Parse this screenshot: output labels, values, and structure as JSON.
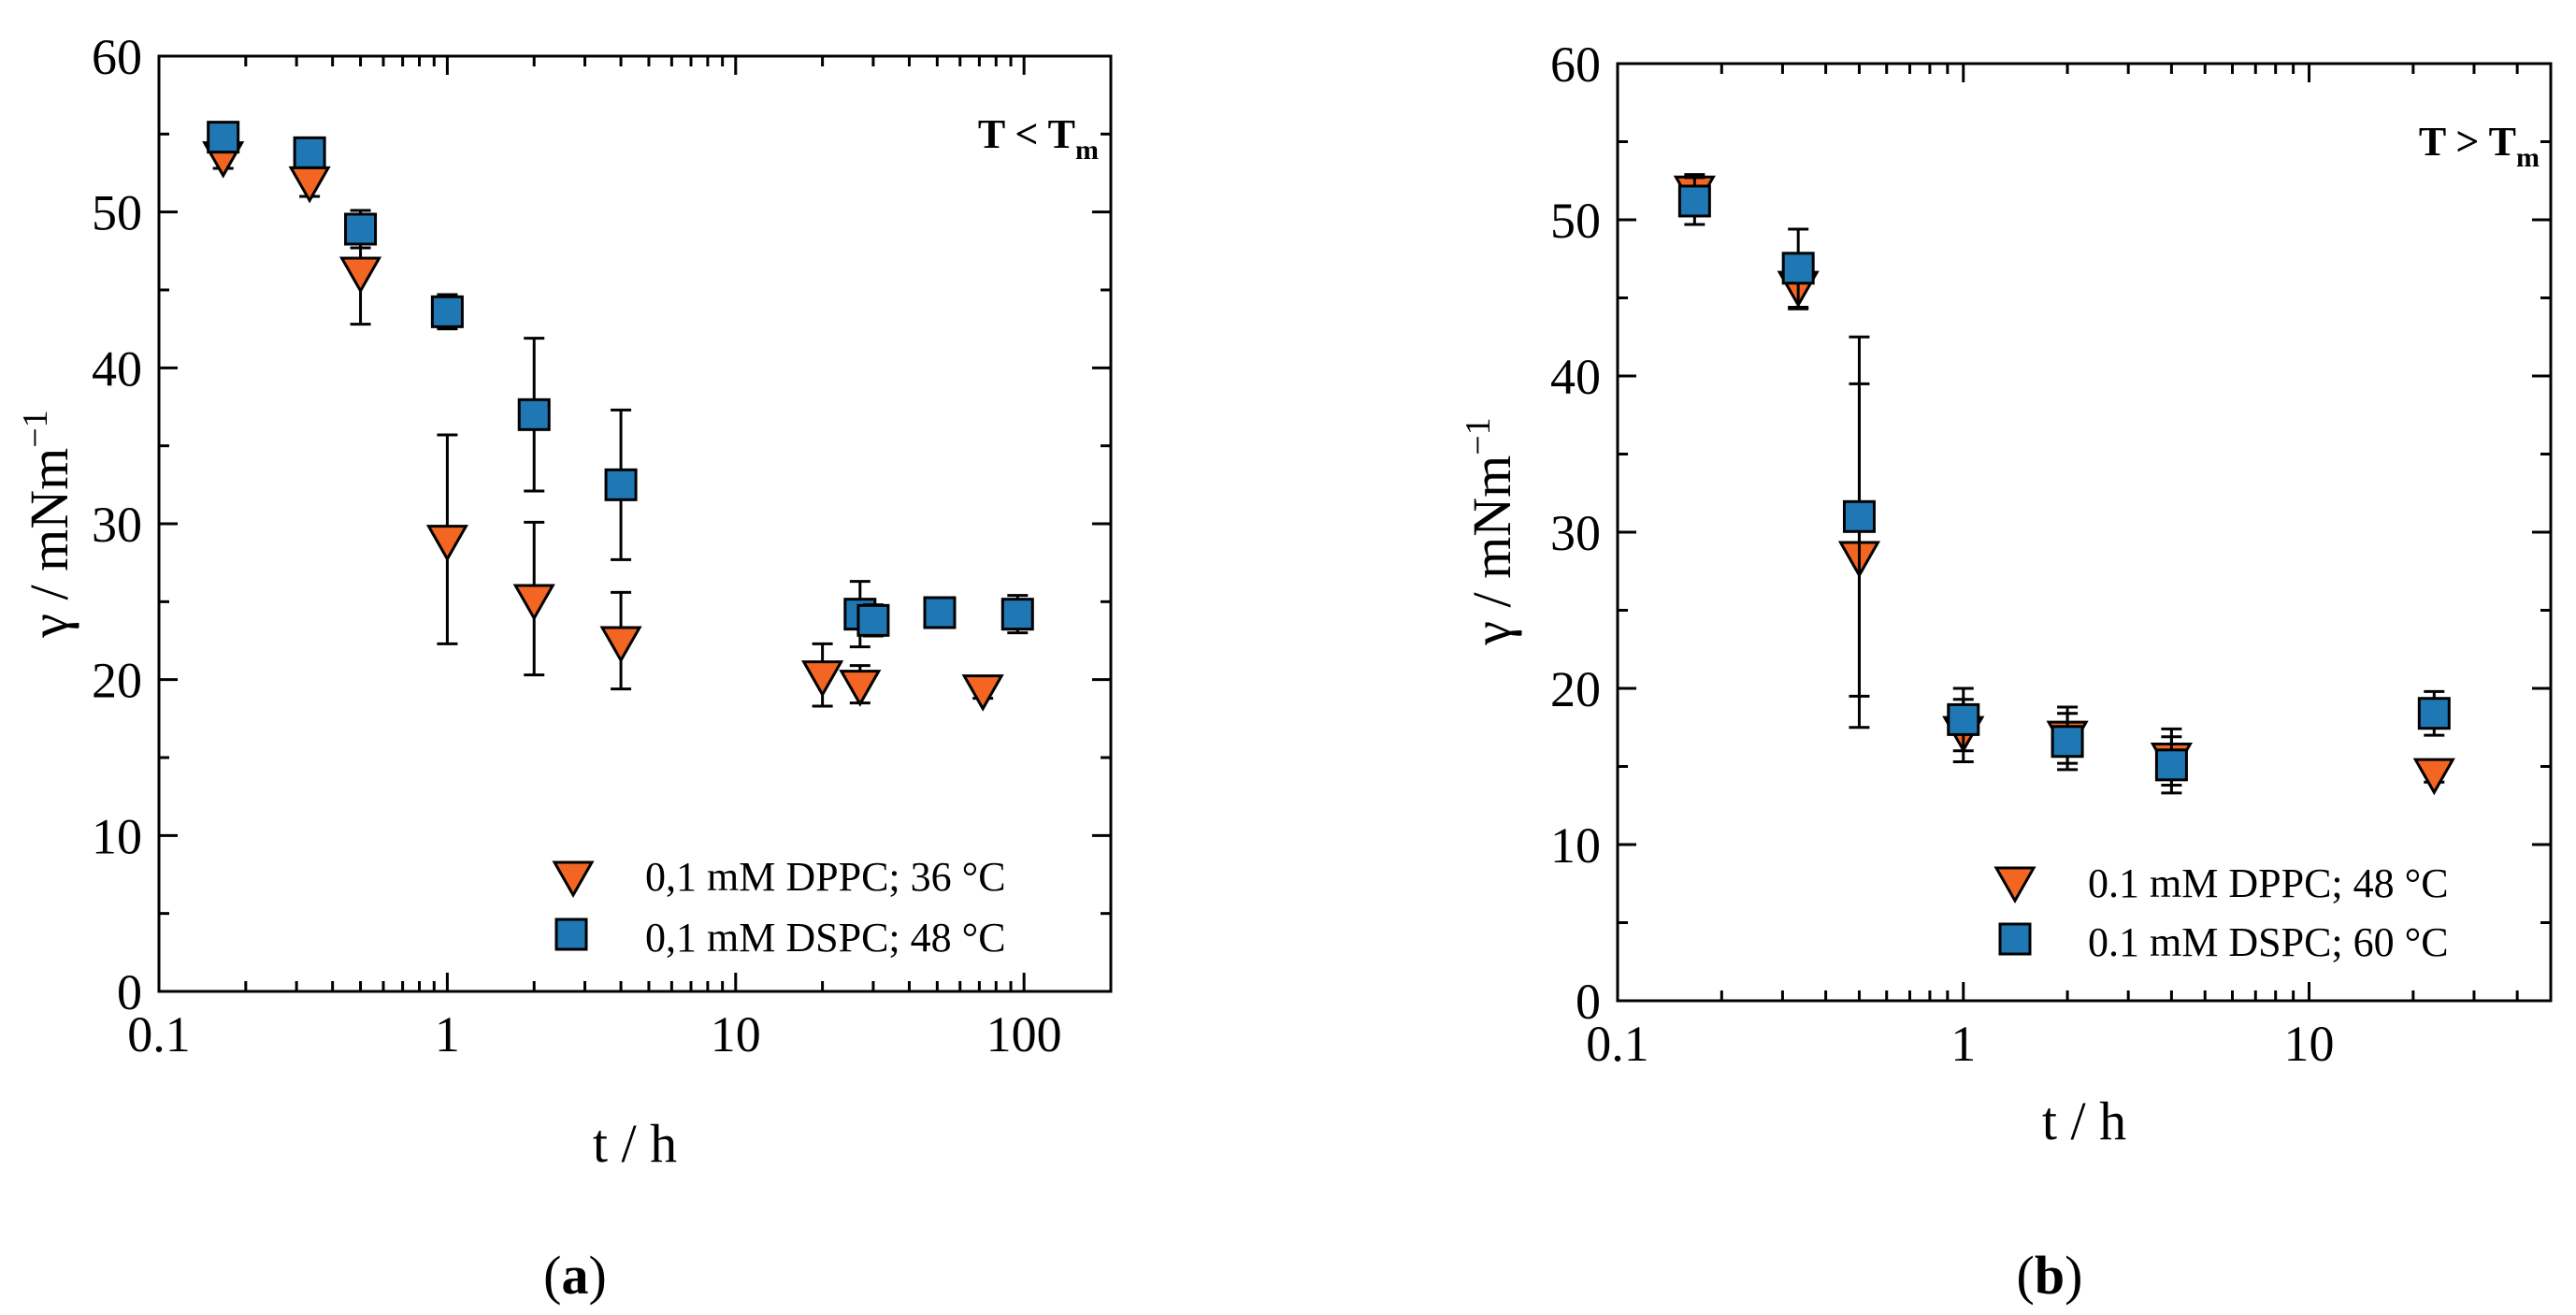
{
  "colors": {
    "dppc": "#f26522",
    "dspc": "#1f77b4",
    "edge": "#000000"
  },
  "chart_data": [
    {
      "type": "scatter",
      "panel": "a",
      "panel_label": "a",
      "x_scale": "log",
      "xlabel": "t / h",
      "ylabel": "γ / mNm",
      "ylabel_exp": "−1",
      "xlim": [
        0.1,
        200
      ],
      "ylim": [
        0,
        60
      ],
      "xticks": [
        0.1,
        1,
        10,
        100
      ],
      "xtick_labels": [
        "0.1",
        "1",
        "10",
        "100"
      ],
      "yticks": [
        0,
        10,
        20,
        30,
        40,
        50,
        60
      ],
      "ytick_labels": [
        "0",
        "10",
        "20",
        "30",
        "40",
        "50",
        "60"
      ],
      "condition_main": "T < T",
      "condition_sub": "m",
      "legend_position": "bottom-right",
      "series": [
        {
          "name": "0,1 mM DPPC; 36 °C",
          "marker": "triangle-down",
          "color": "dppc",
          "x": [
            0.167,
            0.333,
            0.5,
            1,
            2,
            4,
            20,
            27,
            72
          ],
          "y": [
            53.6,
            52.0,
            46.2,
            29.0,
            25.2,
            22.5,
            20.3,
            19.7,
            19.4
          ],
          "err": [
            0.8,
            1.0,
            3.4,
            6.7,
            4.9,
            3.1,
            2.0,
            1.2,
            0.6
          ]
        },
        {
          "name": "0,1 mM DSPC; 48 °C",
          "marker": "square",
          "color": "dspc",
          "x": [
            0.167,
            0.333,
            0.5,
            1,
            2,
            4,
            27,
            30,
            51,
            95
          ],
          "y": [
            54.8,
            53.8,
            48.9,
            43.6,
            37.0,
            32.5,
            24.2,
            23.8,
            24.3,
            24.2
          ],
          "err": [
            0.6,
            0.8,
            1.2,
            1.1,
            4.9,
            4.8,
            2.1,
            1.0,
            0.8,
            1.2
          ]
        }
      ]
    },
    {
      "type": "scatter",
      "panel": "b",
      "panel_label": "b",
      "x_scale": "log",
      "xlabel": "t / h",
      "ylabel": "γ / mNm",
      "ylabel_exp": "−1",
      "xlim": [
        0.1,
        50
      ],
      "ylim": [
        0,
        60
      ],
      "xticks": [
        0.1,
        1,
        10
      ],
      "xtick_labels": [
        "0.1",
        "1",
        "10"
      ],
      "yticks": [
        0,
        10,
        20,
        30,
        40,
        50,
        60
      ],
      "ytick_labels": [
        "0",
        "10",
        "20",
        "30",
        "40",
        "50",
        "60"
      ],
      "condition_main": "T > T",
      "condition_sub": "m",
      "legend_position": "bottom-right",
      "series": [
        {
          "name": "0.1 mM DPPC; 48 °C",
          "marker": "triangle-down",
          "color": "dppc",
          "x": [
            0.167,
            0.333,
            0.5,
            1,
            2,
            4,
            23
          ],
          "y": [
            51.9,
            45.8,
            28.5,
            17.3,
            17.0,
            15.6,
            14.6
          ],
          "err": [
            1.0,
            1.5,
            11.0,
            2.0,
            1.8,
            1.8,
            0.6
          ]
        },
        {
          "name": "0.1 mM DSPC; 60 °C",
          "marker": "square",
          "color": "dspc",
          "x": [
            0.167,
            0.333,
            0.5,
            1,
            2,
            4,
            23
          ],
          "y": [
            51.2,
            46.9,
            31.0,
            18.0,
            16.6,
            15.1,
            18.4
          ],
          "err": [
            1.5,
            2.5,
            11.5,
            2.0,
            1.8,
            1.8,
            1.4
          ]
        }
      ]
    }
  ]
}
